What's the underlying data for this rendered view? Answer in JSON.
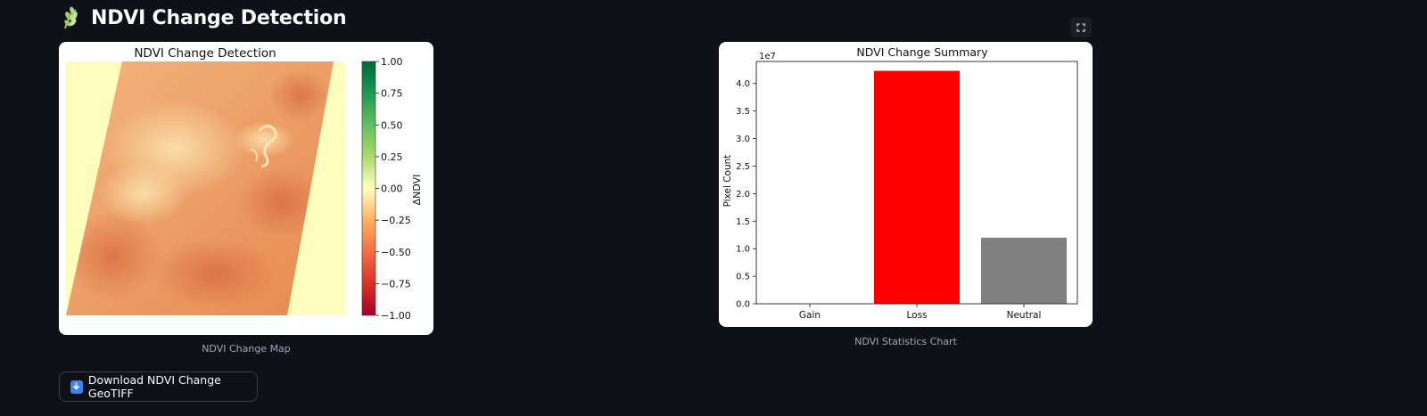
{
  "header": {
    "title": "NDVI Change Detection",
    "icon": "leaf-icon"
  },
  "map_figure": {
    "title": "NDVI Change Detection",
    "caption": "NDVI Change Map",
    "colorbar_label": "ΔNDVI",
    "colorbar_ticks": [
      "1.00",
      "0.75",
      "0.50",
      "0.25",
      "0.00",
      "−0.25",
      "−0.50",
      "−0.75",
      "−1.00"
    ],
    "colormap": "RdYlGn"
  },
  "chart_figure": {
    "caption": "NDVI Statistics Chart"
  },
  "chart_data": {
    "type": "bar",
    "title": "NDVI Change Summary",
    "categories": [
      "Gain",
      "Loss",
      "Neutral"
    ],
    "values": [
      0,
      42300000,
      12000000
    ],
    "colors": [
      "#1f77b4",
      "#ff0000",
      "#808080"
    ],
    "xlabel": "",
    "ylabel": "Pixel Count",
    "ylim": [
      0,
      44000000
    ],
    "yticks": [
      "0.0",
      "0.5",
      "1.0",
      "1.5",
      "2.0",
      "2.5",
      "3.0",
      "3.5",
      "4.0"
    ],
    "y_multiplier": "1e7",
    "grid": false
  },
  "actions": {
    "download_label": "Download NDVI Change GeoTIFF"
  },
  "colors": {
    "background": "#0e1117",
    "text": "#fafafa",
    "caption": "#a3a8b4",
    "accent": "#3b82f6"
  }
}
